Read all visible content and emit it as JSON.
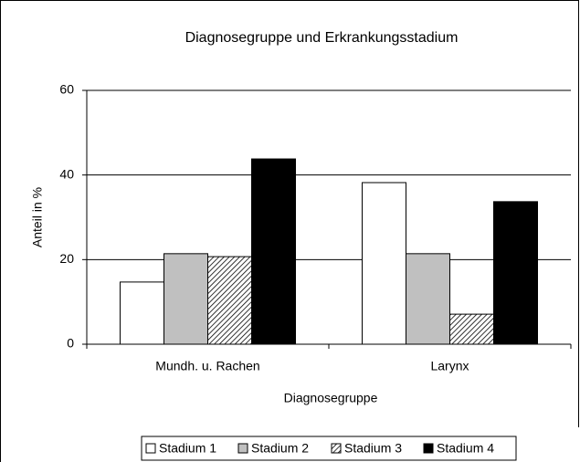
{
  "chart_data": {
    "type": "bar",
    "title": "Diagnosegruppe und Erkrankungsstadium",
    "x_label": "Diagnosegruppe",
    "y_label": "Anteil in %",
    "categories": [
      "Mundh. u. Rachen",
      "Larynx"
    ],
    "series": [
      {
        "name": "Stadium 1",
        "color": "#ffffff",
        "values": [
          14.7,
          38.2
        ]
      },
      {
        "name": "Stadium 2",
        "color": "#c0c0c0",
        "values": [
          21.4,
          21.4
        ]
      },
      {
        "name": "Stadium 3",
        "color": "#000000",
        "pattern": "hatch",
        "values": [
          20.7,
          7.1
        ]
      },
      {
        "name": "Stadium 4",
        "color": "#000000",
        "values": [
          43.8,
          33.7
        ]
      }
    ],
    "ylim": [
      0,
      60
    ],
    "yticks": [
      0,
      20,
      40,
      60
    ],
    "grid": true,
    "legend": "bottom"
  }
}
